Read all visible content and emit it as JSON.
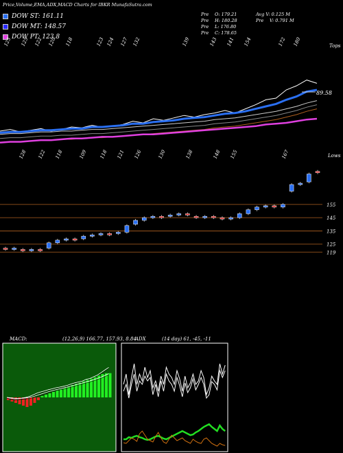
{
  "header": {
    "title": "Price,Volume,EMA,ADX,MACD Charts for IBKR MunafaSutra.com"
  },
  "legend": [
    {
      "label": "DOW ST: 161.11",
      "color": "#2a6ff2"
    },
    {
      "label": "DOW MT: 148.57",
      "color": "#2a2aff"
    },
    {
      "label": "DOW PT: 123.8",
      "color": "#e040e0"
    }
  ],
  "stats": {
    "open": "O: 179.21",
    "high": "H: 180.28",
    "low": "L: 176.80",
    "close": "C: 178.65",
    "avg_volume": "Avg V: 0.125 M",
    "volume": "V: 0.791 M",
    "prefix": "Pre"
  },
  "top_price_label": "89.58",
  "tops_label": "Tops",
  "lows_label": "Lows",
  "macd": {
    "label": "MACD:",
    "values": "(12,26,9) 166.77, 157.93, 8.84"
  },
  "adx": {
    "label": "ADX",
    "values": "(14 day) 61, -45, -11"
  },
  "chart_data": [
    {
      "type": "line",
      "name": "price-ema-panel",
      "top_labels": [
        "125",
        "125",
        "122",
        "120",
        "118",
        "123",
        "124",
        "127",
        "132",
        "139",
        "143",
        "141",
        "154",
        "172",
        "180"
      ],
      "bottom_labels": [
        "128",
        "122",
        "118",
        "109",
        "118",
        "121",
        "126",
        "130",
        "138",
        "148",
        "155",
        "167"
      ],
      "annotation": "89.58",
      "series": [
        {
          "name": "price",
          "color": "#ffffff",
          "values": [
            0.8,
            0.82,
            0.79,
            0.81,
            0.83,
            0.8,
            0.82,
            0.85,
            0.84,
            0.87,
            0.85,
            0.86,
            0.88,
            0.92,
            0.9,
            0.95,
            0.93,
            0.96,
            0.99,
            0.97,
            1.0,
            1.02,
            1.05,
            1.02,
            1.07,
            1.12,
            1.18,
            1.2,
            1.3,
            1.35,
            1.42,
            1.38
          ]
        },
        {
          "name": "ema_short",
          "color": "#2a6ff2",
          "values": [
            0.78,
            0.79,
            0.79,
            0.8,
            0.81,
            0.81,
            0.82,
            0.83,
            0.83,
            0.85,
            0.85,
            0.86,
            0.87,
            0.89,
            0.89,
            0.91,
            0.92,
            0.93,
            0.95,
            0.96,
            0.97,
            0.99,
            1.01,
            1.02,
            1.04,
            1.07,
            1.1,
            1.13,
            1.18,
            1.22,
            1.28,
            1.3
          ]
        },
        {
          "name": "ema_mid",
          "color": "#cccccc",
          "values": [
            0.76,
            0.77,
            0.77,
            0.78,
            0.79,
            0.79,
            0.8,
            0.8,
            0.81,
            0.82,
            0.82,
            0.83,
            0.84,
            0.85,
            0.86,
            0.87,
            0.88,
            0.89,
            0.9,
            0.91,
            0.92,
            0.94,
            0.95,
            0.96,
            0.98,
            1.0,
            1.02,
            1.04,
            1.07,
            1.1,
            1.14,
            1.17
          ]
        },
        {
          "name": "ema_long",
          "color": "#e040e0",
          "values": [
            0.66,
            0.67,
            0.67,
            0.68,
            0.69,
            0.69,
            0.7,
            0.71,
            0.71,
            0.72,
            0.73,
            0.73,
            0.74,
            0.75,
            0.76,
            0.76,
            0.77,
            0.78,
            0.79,
            0.8,
            0.81,
            0.82,
            0.83,
            0.84,
            0.85,
            0.86,
            0.88,
            0.89,
            0.9,
            0.92,
            0.94,
            0.95
          ]
        }
      ]
    },
    {
      "type": "candlestick",
      "name": "price-candles",
      "levels": [
        "155",
        "145",
        "135",
        "125",
        "119"
      ],
      "candles": [
        {
          "o": 122,
          "c": 121
        },
        {
          "o": 121,
          "c": 122
        },
        {
          "o": 121,
          "c": 120
        },
        {
          "o": 120,
          "c": 121
        },
        {
          "o": 121,
          "c": 120
        },
        {
          "o": 122,
          "c": 126
        },
        {
          "o": 126,
          "c": 128
        },
        {
          "o": 128,
          "c": 129
        },
        {
          "o": 129,
          "c": 128
        },
        {
          "o": 129,
          "c": 131
        },
        {
          "o": 131,
          "c": 132
        },
        {
          "o": 132,
          "c": 133
        },
        {
          "o": 133,
          "c": 132
        },
        {
          "o": 133,
          "c": 134
        },
        {
          "o": 134,
          "c": 139
        },
        {
          "o": 140,
          "c": 143
        },
        {
          "o": 143,
          "c": 145
        },
        {
          "o": 145,
          "c": 146
        },
        {
          "o": 146,
          "c": 145
        },
        {
          "o": 146,
          "c": 147
        },
        {
          "o": 147,
          "c": 148
        },
        {
          "o": 148,
          "c": 147
        },
        {
          "o": 146,
          "c": 145
        },
        {
          "o": 145,
          "c": 146
        },
        {
          "o": 146,
          "c": 145
        },
        {
          "o": 145,
          "c": 144
        },
        {
          "o": 144,
          "c": 145
        },
        {
          "o": 145,
          "c": 148
        },
        {
          "o": 148,
          "c": 151
        },
        {
          "o": 151,
          "c": 153
        },
        {
          "o": 153,
          "c": 154
        },
        {
          "o": 154,
          "c": 153
        },
        {
          "o": 153,
          "c": 155
        },
        {
          "o": 165,
          "c": 170
        },
        {
          "o": 170,
          "c": 171
        },
        {
          "o": 172,
          "c": 178
        },
        {
          "o": 180,
          "c": 179
        }
      ]
    },
    {
      "type": "bar",
      "name": "macd-panel",
      "histogram": [
        -1,
        -1.5,
        -2,
        -2.5,
        -3,
        -3.5,
        -3,
        -2,
        -1,
        0.5,
        1,
        1.5,
        2,
        2.5,
        3,
        3.5,
        4,
        4.5,
        5,
        5.5,
        6,
        6.5,
        7,
        7.5,
        8,
        8.5,
        8.8,
        8.84
      ],
      "series": [
        {
          "name": "macd",
          "values": [
            0,
            -0.5,
            -1,
            -0.8,
            -0.4,
            0,
            0.6,
            1.5,
            2.5,
            3.2,
            3.8,
            4.5,
            5,
            5.6,
            6,
            6.5,
            7,
            7.8,
            8.5,
            9,
            9.5,
            10.5,
            11,
            12,
            13,
            14.5,
            16,
            17.5
          ]
        },
        {
          "name": "signal",
          "values": [
            0,
            -0.2,
            -0.5,
            -0.6,
            -0.5,
            -0.3,
            0,
            0.5,
            1.2,
            1.9,
            2.6,
            3.3,
            3.9,
            4.5,
            5,
            5.5,
            6,
            6.6,
            7.2,
            7.8,
            8.4,
            9,
            9.6,
            10.3,
            11,
            11.8,
            12.8,
            13.8
          ]
        }
      ]
    },
    {
      "type": "line",
      "name": "adx-panel",
      "series": [
        {
          "name": "+di",
          "color": "#ffffff"
        },
        {
          "name": "-di",
          "color": "#ffffff"
        },
        {
          "name": "adx",
          "color": "#22dd22"
        },
        {
          "name": "orange",
          "color": "#d07010"
        }
      ]
    }
  ]
}
